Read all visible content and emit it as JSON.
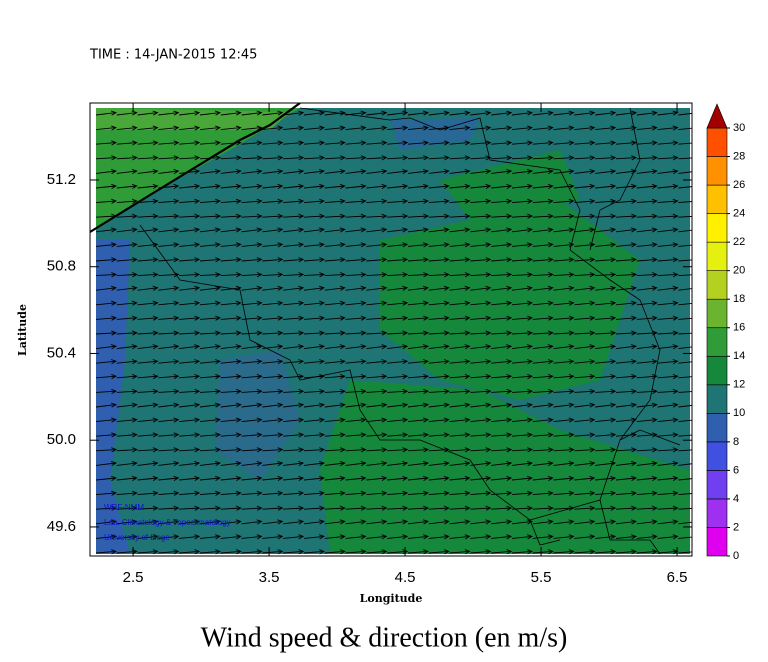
{
  "time_label": "TIME : 14-JAN-2015 12:45",
  "title": "Wind speed & direction (en m/s)",
  "x_axis": {
    "label": "Longitude",
    "lim": [
      2.183,
      6.61
    ],
    "ticks": [
      2.5,
      3.5,
      4.5,
      5.5,
      6.5
    ]
  },
  "y_axis": {
    "label": "Latitude",
    "lim": [
      49.466,
      51.555
    ],
    "ticks": [
      {
        "value": 49.6,
        "label": "49.6"
      },
      {
        "value": 50.0,
        "label": "50.0"
      },
      {
        "value": 50.4,
        "label": "50.4"
      },
      {
        "value": 50.8,
        "label": "50.8"
      },
      {
        "value": 51.2,
        "label": "51.2"
      }
    ]
  },
  "colorbar": {
    "lim": [
      0,
      30
    ],
    "ticks": [
      0,
      2,
      4,
      6,
      8,
      10,
      12,
      14,
      16,
      18,
      20,
      22,
      24,
      26,
      28,
      30
    ],
    "colors": [
      "#e000f0",
      "#a030f0",
      "#7040f0",
      "#4050e0",
      "#2f5fae",
      "#1f7474",
      "#16883c",
      "#2f9c38",
      "#6ab430",
      "#b4d020",
      "#e6f010",
      "#fff000",
      "#ffc000",
      "#ff9000",
      "#ff5000"
    ],
    "extend_color": "#a00000"
  },
  "credits": [
    "WRF-NMM",
    "Lab. Climatology & Topoclimatology",
    "University of Liege"
  ]
}
